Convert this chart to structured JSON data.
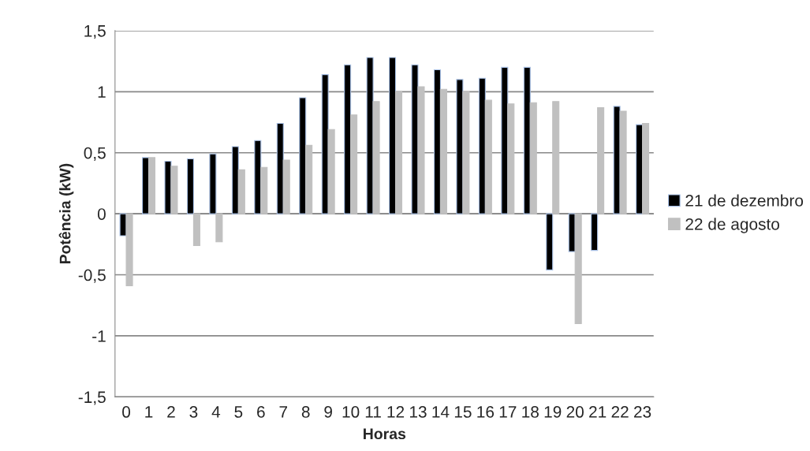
{
  "chart_data": {
    "type": "bar",
    "xlabel": "Horas",
    "ylabel": "Potência (kW)",
    "categories": [
      "0",
      "1",
      "2",
      "3",
      "4",
      "5",
      "6",
      "7",
      "8",
      "9",
      "10",
      "11",
      "12",
      "13",
      "14",
      "15",
      "16",
      "17",
      "18",
      "19",
      "20",
      "21",
      "22",
      "23"
    ],
    "series": [
      {
        "name": "21 de dezembro",
        "color": "#000000",
        "values": [
          -0.18,
          0.46,
          0.43,
          0.45,
          0.49,
          0.55,
          0.6,
          0.74,
          0.95,
          1.14,
          1.22,
          1.28,
          1.28,
          1.22,
          1.18,
          1.1,
          1.11,
          1.2,
          1.2,
          -0.46,
          -0.31,
          -0.3,
          0.88,
          0.73
        ]
      },
      {
        "name": "22 de agosto",
        "color": "#c0c0c0",
        "values": [
          -0.59,
          0.46,
          0.39,
          -0.26,
          -0.23,
          0.36,
          0.38,
          0.44,
          0.56,
          0.69,
          0.81,
          0.92,
          1.0,
          1.04,
          1.02,
          1.0,
          0.93,
          0.9,
          0.91,
          0.92,
          -0.9,
          0.87,
          0.84,
          0.74
        ]
      }
    ],
    "ylim": [
      -1.5,
      1.5
    ],
    "yticks": [
      {
        "value": -1.5,
        "label": "-1,5"
      },
      -1,
      {
        "value": -0.5,
        "label": "-0,5"
      },
      0,
      {
        "value": 0.5,
        "label": "0,5"
      },
      1,
      {
        "value": 1.5,
        "label": "1,5"
      }
    ],
    "grid": "y",
    "legend": "right"
  }
}
